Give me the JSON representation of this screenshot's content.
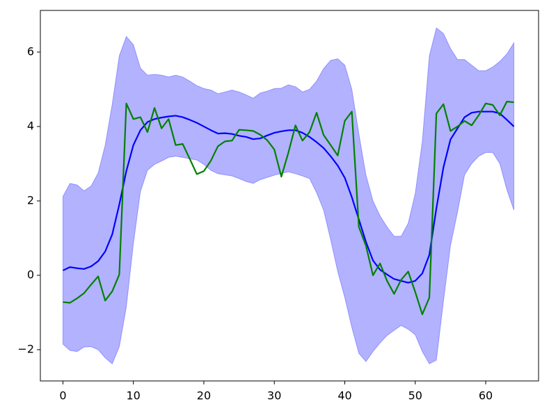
{
  "chart_data": {
    "type": "line",
    "x": [
      0,
      1,
      2,
      3,
      4,
      5,
      6,
      7,
      8,
      9,
      10,
      11,
      12,
      13,
      14,
      15,
      16,
      17,
      18,
      19,
      20,
      21,
      22,
      23,
      24,
      25,
      26,
      27,
      28,
      29,
      30,
      31,
      32,
      33,
      34,
      35,
      36,
      37,
      38,
      39,
      40,
      41,
      42,
      43,
      44,
      45,
      46,
      47,
      48,
      49,
      50,
      51,
      52,
      53,
      54,
      55,
      56,
      57,
      58,
      59,
      60,
      61,
      62,
      63,
      64
    ],
    "band": {
      "color": "#0000ff",
      "alpha": 0.3,
      "upper": [
        2.12,
        2.47,
        2.43,
        2.27,
        2.4,
        2.75,
        3.5,
        4.6,
        5.9,
        6.42,
        6.2,
        5.57,
        5.38,
        5.4,
        5.38,
        5.33,
        5.38,
        5.33,
        5.22,
        5.1,
        5.02,
        4.98,
        4.88,
        4.93,
        4.98,
        4.93,
        4.85,
        4.76,
        4.9,
        4.95,
        5.02,
        5.03,
        5.12,
        5.07,
        4.93,
        5.0,
        5.22,
        5.56,
        5.78,
        5.82,
        5.65,
        5.0,
        3.8,
        2.7,
        2.0,
        1.6,
        1.3,
        1.05,
        1.05,
        1.4,
        2.2,
        3.6,
        5.9,
        6.65,
        6.5,
        6.1,
        5.8,
        5.8,
        5.65,
        5.5,
        5.5,
        5.6,
        5.75,
        5.95,
        6.25
      ],
      "lower": [
        -1.85,
        -2.02,
        -2.05,
        -1.93,
        -1.92,
        -2.0,
        -2.22,
        -2.38,
        -1.92,
        -0.85,
        0.85,
        2.25,
        2.82,
        2.98,
        3.07,
        3.17,
        3.2,
        3.17,
        3.13,
        3.1,
        2.98,
        2.82,
        2.73,
        2.7,
        2.67,
        2.6,
        2.52,
        2.47,
        2.57,
        2.63,
        2.69,
        2.74,
        2.78,
        2.73,
        2.67,
        2.6,
        2.22,
        1.75,
        0.95,
        0.1,
        -0.6,
        -1.4,
        -2.1,
        -2.32,
        -2.05,
        -1.82,
        -1.62,
        -1.48,
        -1.35,
        -1.45,
        -1.6,
        -2.05,
        -2.38,
        -2.28,
        -0.7,
        0.8,
        1.7,
        2.7,
        3.0,
        3.2,
        3.3,
        3.3,
        3.0,
        2.3,
        1.75
      ]
    },
    "series": [
      {
        "color": "#0000ff",
        "values": [
          0.13,
          0.22,
          0.19,
          0.17,
          0.24,
          0.38,
          0.64,
          1.1,
          1.9,
          2.8,
          3.5,
          3.9,
          4.12,
          4.2,
          4.24,
          4.27,
          4.29,
          4.25,
          4.18,
          4.1,
          4.0,
          3.9,
          3.81,
          3.82,
          3.8,
          3.75,
          3.72,
          3.66,
          3.68,
          3.76,
          3.83,
          3.87,
          3.9,
          3.9,
          3.83,
          3.72,
          3.58,
          3.42,
          3.2,
          2.95,
          2.62,
          2.1,
          1.5,
          0.9,
          0.4,
          0.15,
          0.02,
          -0.1,
          -0.15,
          -0.2,
          -0.15,
          0.05,
          0.55,
          1.8,
          2.9,
          3.65,
          3.95,
          4.25,
          4.37,
          4.4,
          4.4,
          4.4,
          4.35,
          4.18,
          4.0
        ]
      },
      {
        "color": "#008000",
        "values": [
          -0.72,
          -0.74,
          -0.62,
          -0.48,
          -0.25,
          -0.03,
          -0.68,
          -0.43,
          0.02,
          4.62,
          4.2,
          4.25,
          3.85,
          4.5,
          3.95,
          4.2,
          3.5,
          3.53,
          3.13,
          2.72,
          2.8,
          3.08,
          3.47,
          3.6,
          3.62,
          3.91,
          3.9,
          3.88,
          3.78,
          3.63,
          3.38,
          2.65,
          3.3,
          4.03,
          3.62,
          3.85,
          4.37,
          3.77,
          3.5,
          3.22,
          4.15,
          4.4,
          1.3,
          0.8,
          0.0,
          0.32,
          -0.15,
          -0.5,
          -0.12,
          0.1,
          -0.45,
          -1.05,
          -0.6,
          4.35,
          4.6,
          3.88,
          4.0,
          4.15,
          4.03,
          4.3,
          4.62,
          4.58,
          4.3,
          4.67,
          4.65
        ]
      }
    ],
    "xlim": [
      -3.2,
      67.5
    ],
    "ylim": [
      -2.84,
      7.12
    ],
    "xticks": [
      0,
      10,
      20,
      30,
      40,
      50,
      60
    ],
    "yticks": [
      {
        "value": -2,
        "label": "−2"
      },
      0,
      2,
      4,
      6
    ],
    "grid": false
  }
}
